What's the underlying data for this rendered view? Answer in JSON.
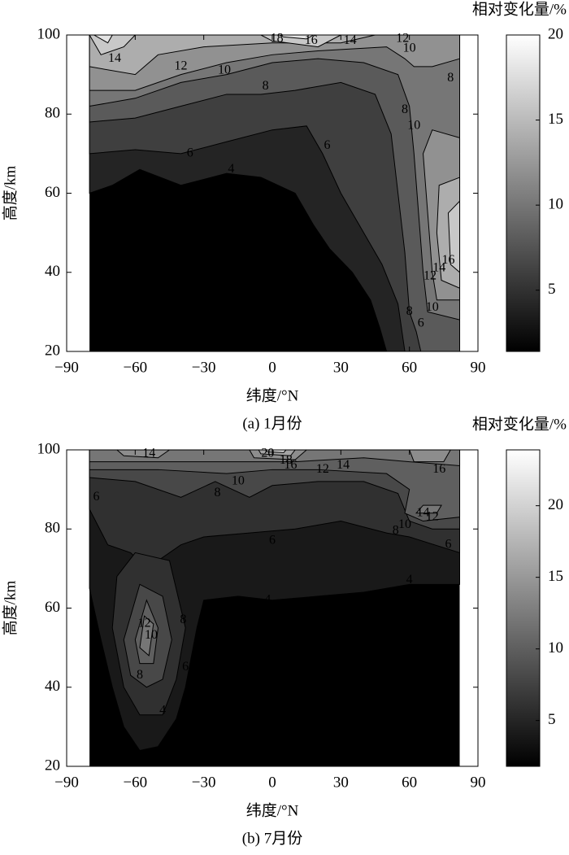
{
  "chart_data": [
    {
      "type": "contour",
      "caption": "(a) 1月份",
      "x_label": "纬度/°N",
      "y_label": "高度/km",
      "colorbar_label": "相对变化量/%",
      "xlim": [
        -90,
        90
      ],
      "xticks": [
        {
          "value": -90,
          "label": "−90"
        },
        {
          "value": -60,
          "label": "−60"
        },
        {
          "value": -30,
          "label": "−30"
        },
        0,
        30,
        60,
        90
      ],
      "ylim": [
        20,
        100
      ],
      "yticks": [
        20,
        40,
        60,
        80,
        100
      ],
      "zlim": [
        1.4,
        20
      ],
      "zticks": [
        5,
        10,
        15,
        20
      ],
      "levels": [
        4,
        6,
        8,
        10,
        12,
        14,
        16,
        18
      ],
      "contour_labels": [
        18,
        16,
        14,
        12,
        10,
        14,
        12,
        10,
        8,
        8,
        8,
        10,
        6,
        6,
        4,
        16,
        14,
        12,
        10,
        8,
        6,
        4
      ]
    },
    {
      "type": "contour",
      "caption": "(b) 7月份",
      "x_label": "纬度/°N",
      "y_label": "高度/km",
      "colorbar_label": "相对变化量/%",
      "xlim": [
        -90,
        90
      ],
      "xticks": [
        {
          "value": -90,
          "label": "−90"
        },
        {
          "value": -60,
          "label": "−60"
        },
        {
          "value": -30,
          "label": "−30"
        },
        0,
        30,
        60,
        90
      ],
      "ylim": [
        20,
        100
      ],
      "yticks": [
        20,
        40,
        60,
        80,
        100
      ],
      "zlim": [
        1.8,
        23.9
      ],
      "zticks": [
        5,
        10,
        15,
        20
      ],
      "levels": [
        4,
        6,
        8,
        10,
        12,
        14,
        16,
        18,
        20
      ],
      "contour_labels": [
        14,
        20,
        18,
        16,
        12,
        14,
        16,
        10,
        8,
        6,
        14,
        12,
        10,
        8,
        6,
        6,
        4,
        4,
        12,
        10,
        8,
        8,
        6,
        4
      ]
    }
  ]
}
